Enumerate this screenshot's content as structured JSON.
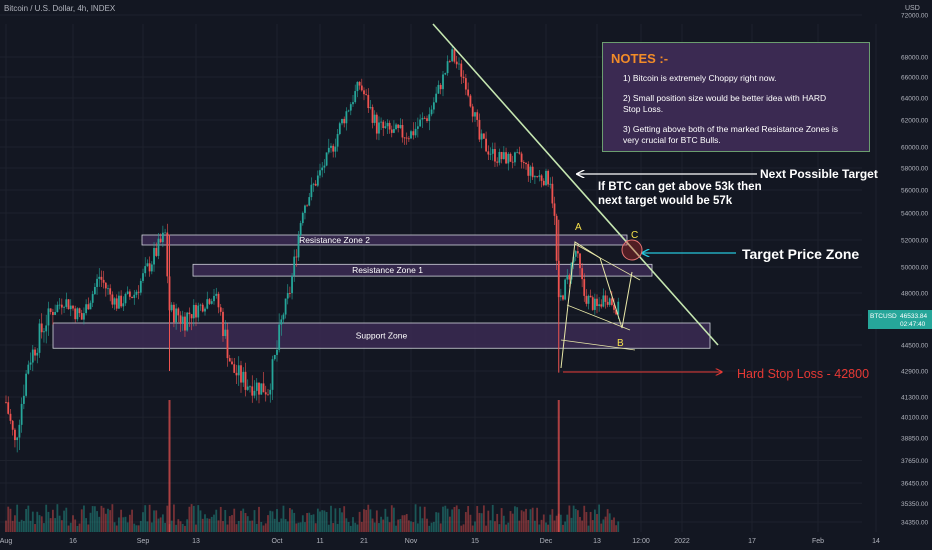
{
  "header": {
    "title": "Bitcoin / U.S. Dollar, 4h, INDEX",
    "currency": "USD"
  },
  "notes": {
    "title": "NOTES :-",
    "items": [
      "1) Bitcoin is extremely Choppy right now.",
      "2) Small position size would be better idea with HARD Stop Loss.",
      "3) Getting above both of the marked Resistance Zones is very crucial for BTC Bulls."
    ]
  },
  "annotations": {
    "next_target": "Next Possible Target",
    "btc_above": "If BTC can get above 53k then",
    "next_target_57k": "next target would be 57k",
    "target_zone": "Target Price Zone",
    "stop_loss": "Hard Stop Loss - 42800",
    "point_a": "A",
    "point_b": "B",
    "point_c": "C"
  },
  "colors": {
    "background": "#131722",
    "up": "#26a69a",
    "down": "#ef5350",
    "zone_fill": "#3b2a52",
    "zone_border": "#d1d4dc",
    "trendline": "#c5e6b0",
    "stop": "#e53935",
    "arrow": "#26c6da",
    "label_a_b_c": "#f5e04a",
    "ticker": "#26a69a"
  },
  "chart_data": {
    "type": "candlestick",
    "symbol": "BTCUSD",
    "last_price": "46533.84",
    "countdown": "02:47:40",
    "y_ticks": [
      "72000.00",
      "68000.00",
      "66000.00",
      "64000.00",
      "62000.00",
      "60000.00",
      "58000.00",
      "56000.00",
      "54000.00",
      "52000.00",
      "50000.00",
      "48000.00",
      "46000.00",
      "44500.00",
      "42900.00",
      "41300.00",
      "40100.00",
      "38850.00",
      "37650.00",
      "36450.00",
      "35350.00",
      "34350.00"
    ],
    "x_ticks": [
      "Aug",
      "16",
      "Sep",
      "13",
      "Oct",
      "11",
      "21",
      "Nov",
      "15",
      "Dec",
      "13",
      "12:00",
      "2022",
      "17",
      "Feb",
      "14"
    ],
    "zones": [
      {
        "label": "Resistance Zone 2",
        "low": 51800,
        "high": 52200
      },
      {
        "label": "Resistance Zone 1",
        "low": 49300,
        "high": 50200
      },
      {
        "label": "Support Zone",
        "low": 44300,
        "high": 45600
      }
    ],
    "levels": {
      "stop_loss": 42800,
      "next_target": 57000,
      "breakout": 53000
    },
    "price_path": [
      [
        "Aug 1",
        41000
      ],
      [
        "Aug 3",
        38500
      ],
      [
        "Aug 6",
        43500
      ],
      [
        "Aug 10",
        45800
      ],
      [
        "Aug 14",
        47400
      ],
      [
        "Aug 18",
        45800
      ],
      [
        "Aug 22",
        49300
      ],
      [
        "Aug 26",
        47000
      ],
      [
        "Aug 30",
        47900
      ],
      [
        "Sep 3",
        50500
      ],
      [
        "Sep 6",
        52400
      ],
      [
        "Sep 7",
        46500
      ],
      [
        "Sep 10",
        45800
      ],
      [
        "Sep 14",
        46800
      ],
      [
        "Sep 17",
        48000
      ],
      [
        "Sep 21",
        43000
      ],
      [
        "Sep 24",
        42200
      ],
      [
        "Sep 29",
        41800
      ],
      [
        "Oct 1",
        44200
      ],
      [
        "Oct 4",
        48200
      ],
      [
        "Oct 7",
        54500
      ],
      [
        "Oct 11",
        57500
      ],
      [
        "Oct 15",
        61000
      ],
      [
        "Oct 20",
        65300
      ],
      [
        "Oct 24",
        61500
      ],
      [
        "Oct 28",
        61000
      ],
      [
        "Nov 1",
        61000
      ],
      [
        "Nov 5",
        62500
      ],
      [
        "Nov 10",
        68200
      ],
      [
        "Nov 13",
        65500
      ],
      [
        "Nov 16",
        60500
      ],
      [
        "Nov 20",
        59000
      ],
      [
        "Nov 25",
        58800
      ],
      [
        "Nov 28",
        57300
      ],
      [
        "Dec 2",
        57000
      ],
      [
        "Dec 3",
        53500
      ],
      [
        "Dec 4",
        47000
      ],
      [
        "Dec 6",
        49000
      ],
      [
        "Dec 8",
        51200
      ],
      [
        "Dec 10",
        47800
      ],
      [
        "Dec 13",
        46600
      ],
      [
        "Dec 15",
        47800
      ],
      [
        "Dec 18",
        46533
      ]
    ]
  }
}
